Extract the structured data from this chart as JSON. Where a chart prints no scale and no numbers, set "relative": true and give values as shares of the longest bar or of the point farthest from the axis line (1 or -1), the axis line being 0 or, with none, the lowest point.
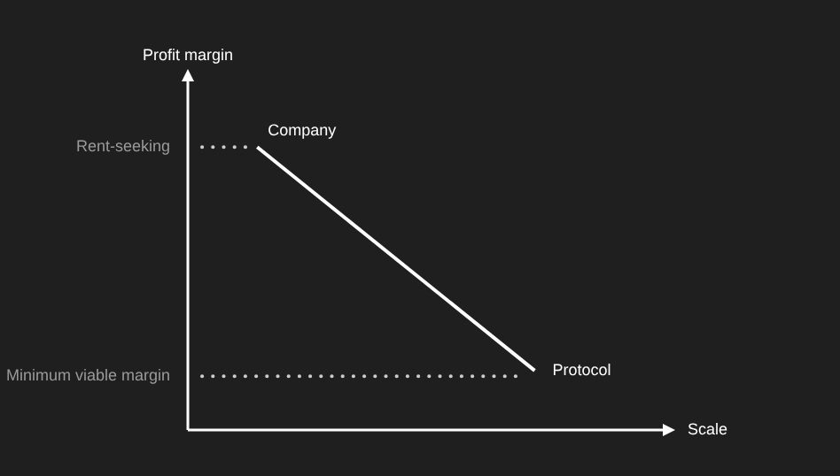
{
  "chart_data": {
    "type": "line",
    "relative": true,
    "xlabel": "Scale",
    "categories": [
      null,
      null,
      null,
      null,
      null,
      null,
      null,
      null
    ],
    "series": [
      {
        "color": "#ffffff",
        "values": [
          null,
          1,
          null,
          null,
          null,
          0.21,
          null,
          null
        ]
      }
    ],
    "ref_lines": [
      {
        "axis": "y",
        "value": 1,
        "label": "Rent-seeking",
        "color": "#cccccc",
        "line_style": "dotted"
      },
      {
        "axis": "y",
        "value": 0.19,
        "label": "Minimum viable margin",
        "color": "#cccccc",
        "line_style": "dotted"
      }
    ],
    "annotations": [
      "Company",
      "Protocol",
      "Profit margin"
    ],
    "marker": "none",
    "line_style": "solid",
    "legend": false
  }
}
